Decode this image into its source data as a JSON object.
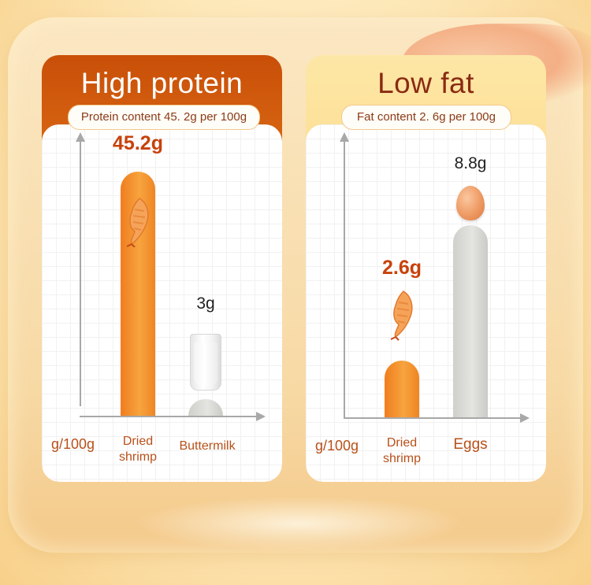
{
  "panels": {
    "protein": {
      "title": "High protein",
      "subtitle": "Protein content 45. 2g per 100g",
      "unit": "g/100g"
    },
    "fat": {
      "title": "Low fat",
      "subtitle": "Fat content 2. 6g per 100g",
      "unit": "g/100g"
    }
  },
  "colors": {
    "highlight_bar": "#f0841f",
    "comparison_bar": "#d6d6d2",
    "label_orange": "#c7420c",
    "protein_header": "#d2600f",
    "fat_header": "#fcd98a"
  },
  "icons": [
    "shrimp-icon",
    "milk-glass-icon",
    "egg-icon"
  ],
  "chart_data": [
    {
      "type": "bar",
      "title": "High protein",
      "ylabel": "g/100g",
      "categories": [
        "Dried shrimp",
        "Buttermilk"
      ],
      "values": [
        45.2,
        3
      ],
      "value_labels": [
        "45.2g",
        "3g"
      ],
      "ylim": [
        0,
        45.2
      ],
      "grid": true
    },
    {
      "type": "bar",
      "title": "Low fat",
      "ylabel": "g/100g",
      "categories": [
        "Dried shrimp",
        "Eggs"
      ],
      "values": [
        2.6,
        8.8
      ],
      "value_labels": [
        "2.6g",
        "8.8g"
      ],
      "ylim": [
        0,
        8.8
      ],
      "grid": true
    }
  ]
}
